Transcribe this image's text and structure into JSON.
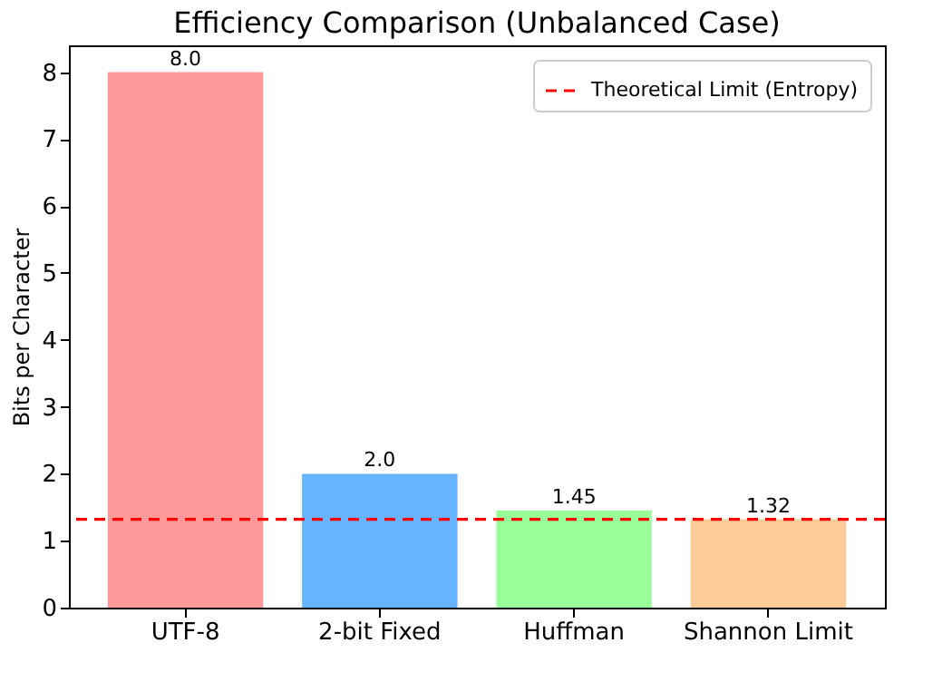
{
  "chart_data": {
    "type": "bar",
    "title": "Efficiency Comparison (Unbalanced Case)",
    "ylabel": "Bits per Character",
    "categories": [
      "UTF-8",
      "2-bit Fixed",
      "Huffman",
      "Shannon Limit"
    ],
    "values": [
      8.0,
      2.0,
      1.45,
      1.32
    ],
    "colors": [
      "#ff9999",
      "#66b3ff",
      "#99ff99",
      "#ffcc99"
    ],
    "value_labels": [
      "8.0",
      "2.0",
      "1.45",
      "1.32"
    ],
    "ylim": [
      0,
      8.4
    ],
    "yticks": [
      0,
      1,
      2,
      3,
      4,
      5,
      6,
      7,
      8
    ],
    "grid": false,
    "legend": "top right",
    "ref_lines": [
      {
        "axis": "y",
        "value": 1.32,
        "label": "Theoretical Limit (Entropy)",
        "color": "#ff0000",
        "line_style": "dashed"
      }
    ]
  }
}
